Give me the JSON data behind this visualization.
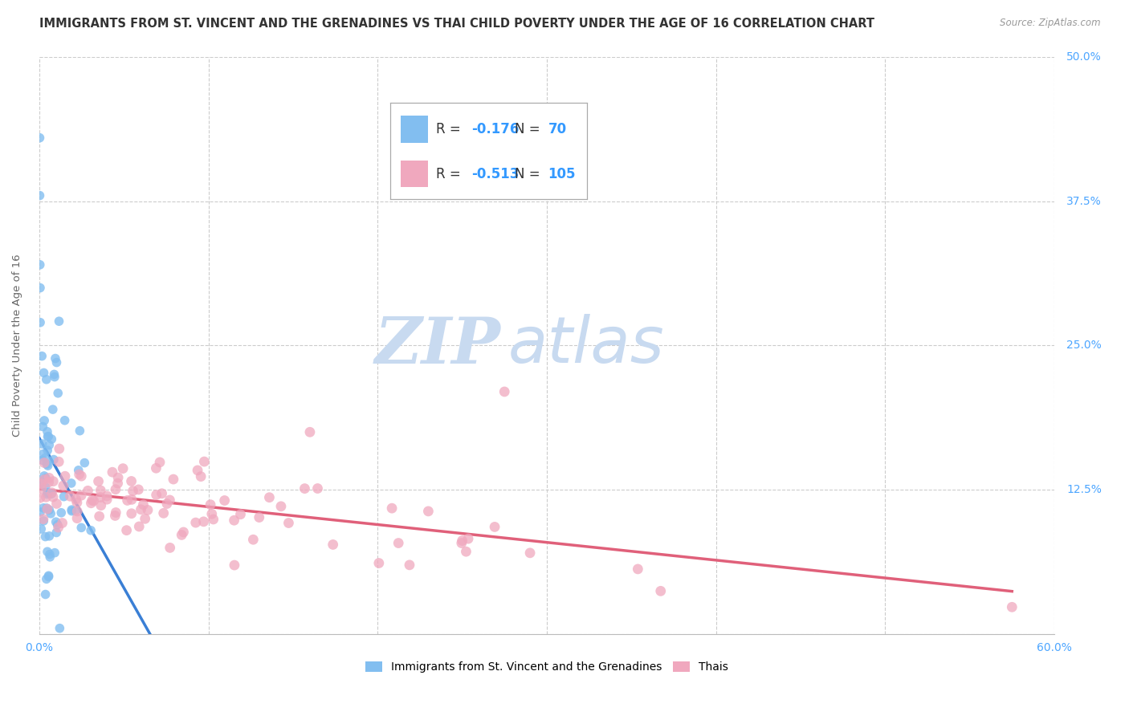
{
  "title": "IMMIGRANTS FROM ST. VINCENT AND THE GRENADINES VS THAI CHILD POVERTY UNDER THE AGE OF 16 CORRELATION CHART",
  "source": "Source: ZipAtlas.com",
  "ylabel": "Child Poverty Under the Age of 16",
  "xlim": [
    0,
    0.6
  ],
  "ylim": [
    0,
    0.5
  ],
  "xticks": [
    0.0,
    0.1,
    0.2,
    0.3,
    0.4,
    0.5,
    0.6
  ],
  "yticks": [
    0.0,
    0.125,
    0.25,
    0.375,
    0.5
  ],
  "grid_color": "#cccccc",
  "background_color": "#ffffff",
  "blue_color": "#82bef0",
  "pink_color": "#f0a8be",
  "blue_line_color": "#3a7fd5",
  "pink_line_color": "#e0607a",
  "dashed_line_color": "#aaaacc",
  "R_blue": -0.176,
  "N_blue": 70,
  "R_pink": -0.513,
  "N_pink": 105,
  "legend_R_color": "#3399ff",
  "watermark_color": "#c8daf0",
  "title_color": "#333333",
  "axis_label_color": "#666666",
  "tick_label_color": "#4da6ff",
  "legend_box_color": "#e8e8f0"
}
